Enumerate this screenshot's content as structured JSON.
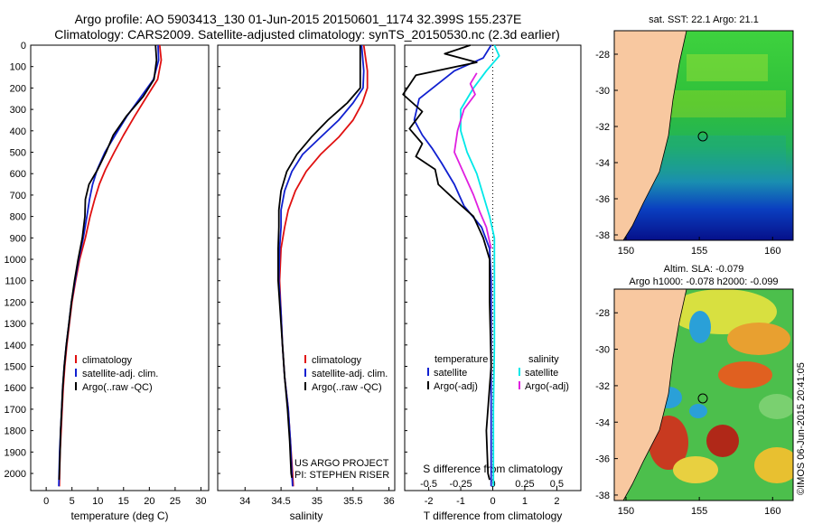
{
  "header": {
    "line1": "Argo profile: AO 5903413_130 01-Jun-2015 20150601_1174 32.399S 155.237E",
    "line2": "Climatology: CARS2009. Satellite-adjusted climatology: synTS_20150530.nc (2.3d earlier)"
  },
  "stamp": "©IMOS 06-Jun-2015 20:41:05",
  "colors": {
    "climatology": "#e01010",
    "satellite": "#1020d0",
    "argo": "#000000",
    "satellite_salinity": "#00e8e8",
    "argo_salinity": "#e020e0",
    "land": "#f8c8a0"
  },
  "chart_data": [
    {
      "type": "line",
      "xlabel": "temperature (deg C)",
      "xticks": [
        "0",
        "5",
        "10",
        "15",
        "20",
        "25",
        "30"
      ],
      "xlim": [
        -3,
        31.5
      ],
      "ylim": [
        0,
        2080
      ],
      "ylabel_ticks": [
        "0",
        "100",
        "200",
        "300",
        "400",
        "500",
        "600",
        "700",
        "800",
        "900",
        "1000",
        "1100",
        "1200",
        "1300",
        "1400",
        "1500",
        "1600",
        "1700",
        "1800",
        "1900",
        "2000"
      ],
      "legend": [
        "climatology",
        "satellite-adj. clim.",
        "Argo(..raw -QC)"
      ],
      "series": [
        {
          "name": "climatology",
          "points": [
            [
              22,
              0
            ],
            [
              22.3,
              70
            ],
            [
              21.6,
              160
            ],
            [
              19.5,
              240
            ],
            [
              17.2,
              330
            ],
            [
              15,
              420
            ],
            [
              13.2,
              500
            ],
            [
              11.5,
              580
            ],
            [
              10.3,
              650
            ],
            [
              9.4,
              720
            ],
            [
              8.5,
              800
            ],
            [
              7.6,
              900
            ],
            [
              6.5,
              1000
            ],
            [
              5.7,
              1100
            ],
            [
              5,
              1200
            ],
            [
              4.5,
              1300
            ],
            [
              4,
              1400
            ],
            [
              3.6,
              1500
            ],
            [
              3.3,
              1600
            ],
            [
              3.1,
              1700
            ],
            [
              2.9,
              1800
            ],
            [
              2.7,
              1900
            ],
            [
              2.6,
              2000
            ],
            [
              2.55,
              2060
            ]
          ]
        },
        {
          "name": "satellite-adj. clim.",
          "points": [
            [
              21.7,
              0
            ],
            [
              21.8,
              70
            ],
            [
              20.8,
              160
            ],
            [
              18.4,
              240
            ],
            [
              15.7,
              330
            ],
            [
              13.4,
              420
            ],
            [
              11.4,
              500
            ],
            [
              9.9,
              580
            ],
            [
              9,
              650
            ],
            [
              8.4,
              720
            ],
            [
              7.9,
              800
            ],
            [
              7.2,
              900
            ],
            [
              6.3,
              1000
            ],
            [
              5.6,
              1100
            ],
            [
              4.9,
              1200
            ],
            [
              4.4,
              1300
            ],
            [
              3.9,
              1400
            ],
            [
              3.5,
              1500
            ],
            [
              3.2,
              1600
            ],
            [
              3,
              1700
            ],
            [
              2.8,
              1800
            ],
            [
              2.6,
              1900
            ],
            [
              2.5,
              2000
            ],
            [
              2.45,
              2060
            ]
          ]
        },
        {
          "name": "Argo(..raw -QC)",
          "points": [
            [
              21.2,
              0
            ],
            [
              21.4,
              70
            ],
            [
              20.9,
              160
            ],
            [
              18.8,
              240
            ],
            [
              15.6,
              330
            ],
            [
              13,
              420
            ],
            [
              11.6,
              500
            ],
            [
              10,
              580
            ],
            [
              8.3,
              650
            ],
            [
              7.6,
              720
            ],
            [
              7.5,
              800
            ],
            [
              7,
              900
            ],
            [
              6.2,
              1000
            ],
            [
              5.5,
              1100
            ],
            [
              4.9,
              1200
            ],
            [
              4.4,
              1300
            ],
            [
              3.9,
              1400
            ],
            [
              3.5,
              1500
            ],
            [
              3.2,
              1600
            ],
            [
              3,
              1700
            ],
            [
              2.8,
              1800
            ],
            [
              2.7,
              1900
            ],
            [
              2.55,
              2000
            ],
            [
              2.5,
              2030
            ]
          ]
        }
      ]
    },
    {
      "type": "line",
      "xlabel": "salinity",
      "xticks": [
        "34",
        "34.5",
        "35",
        "35.5",
        "36"
      ],
      "xlim": [
        33.62,
        36.08
      ],
      "ylim": [
        0,
        2080
      ],
      "legend": [
        "climatology",
        "satellite-adj. clim.",
        "Argo(..raw -QC)"
      ],
      "annotation": [
        "US ARGO PROJECT",
        "PI: STEPHEN RISER"
      ],
      "series": [
        {
          "name": "climatology",
          "points": [
            [
              35.65,
              0
            ],
            [
              35.7,
              120
            ],
            [
              35.7,
              200
            ],
            [
              35.63,
              270
            ],
            [
              35.5,
              350
            ],
            [
              35.3,
              430
            ],
            [
              35.05,
              510
            ],
            [
              34.85,
              590
            ],
            [
              34.7,
              680
            ],
            [
              34.6,
              770
            ],
            [
              34.55,
              850
            ],
            [
              34.5,
              950
            ],
            [
              34.48,
              1100
            ],
            [
              34.5,
              1250
            ],
            [
              34.52,
              1400
            ],
            [
              34.55,
              1550
            ],
            [
              34.6,
              1700
            ],
            [
              34.63,
              1850
            ],
            [
              34.66,
              2000
            ],
            [
              34.67,
              2060
            ]
          ]
        },
        {
          "name": "satellite-adj. clim.",
          "points": [
            [
              35.62,
              0
            ],
            [
              35.65,
              120
            ],
            [
              35.64,
              200
            ],
            [
              35.5,
              270
            ],
            [
              35.3,
              350
            ],
            [
              35.05,
              430
            ],
            [
              34.8,
              510
            ],
            [
              34.65,
              590
            ],
            [
              34.55,
              680
            ],
            [
              34.5,
              770
            ],
            [
              34.5,
              850
            ],
            [
              34.48,
              950
            ],
            [
              34.47,
              1100
            ],
            [
              34.5,
              1250
            ],
            [
              34.52,
              1400
            ],
            [
              34.55,
              1550
            ],
            [
              34.6,
              1700
            ],
            [
              34.63,
              1850
            ],
            [
              34.65,
              2000
            ],
            [
              34.66,
              2060
            ]
          ]
        },
        {
          "name": "Argo(..raw -QC)",
          "points": [
            [
              35.6,
              0
            ],
            [
              35.6,
              120
            ],
            [
              35.6,
              200
            ],
            [
              35.42,
              270
            ],
            [
              35.15,
              350
            ],
            [
              34.92,
              430
            ],
            [
              34.72,
              510
            ],
            [
              34.58,
              590
            ],
            [
              34.5,
              680
            ],
            [
              34.47,
              770
            ],
            [
              34.47,
              850
            ],
            [
              34.46,
              950
            ],
            [
              34.46,
              1100
            ],
            [
              34.49,
              1250
            ],
            [
              34.52,
              1400
            ],
            [
              34.55,
              1550
            ],
            [
              34.59,
              1700
            ],
            [
              34.62,
              1850
            ],
            [
              34.64,
              2000
            ],
            [
              34.65,
              2020
            ]
          ]
        }
      ]
    },
    {
      "type": "line",
      "xlabel": "T difference from climatology",
      "xticks": [
        "-2",
        "-1",
        "0",
        "1",
        "2"
      ],
      "xlim": [
        -2.75,
        2.75
      ],
      "top_label": "S difference from climatology",
      "top_ticks": [
        "-0.5",
        "-0.25",
        "0",
        "0.25",
        "0.5"
      ],
      "top_tick_values_T": [
        -2,
        -1,
        0,
        1,
        2
      ],
      "ylim": [
        0,
        2080
      ],
      "legend_left_title": "temperature",
      "legend_right_title": "salinity",
      "legend": [
        "satellite",
        "Argo(-adj)",
        "satellite",
        "Argo(-adj)"
      ],
      "series": [
        {
          "name": "satellite",
          "group": "temperature",
          "points": [
            [
              -0.05,
              0
            ],
            [
              -0.3,
              60
            ],
            [
              -1.2,
              120
            ],
            [
              -2.3,
              250
            ],
            [
              -2.45,
              350
            ],
            [
              -2.2,
              420
            ],
            [
              -1.9,
              480
            ],
            [
              -1.6,
              550
            ],
            [
              -1.2,
              650
            ],
            [
              -0.9,
              750
            ],
            [
              -0.35,
              850
            ],
            [
              -0.1,
              950
            ],
            [
              -0.05,
              1100
            ],
            [
              -0.05,
              1300
            ],
            [
              -0.05,
              1600
            ],
            [
              -0.05,
              2000
            ],
            [
              -0.05,
              2060
            ]
          ]
        },
        {
          "name": "Argo(-adj)",
          "group": "temperature",
          "points": [
            [
              -0.7,
              0
            ],
            [
              -1.5,
              40
            ],
            [
              -0.5,
              80
            ],
            [
              -2.4,
              140
            ],
            [
              -2.8,
              230
            ],
            [
              -2.2,
              310
            ],
            [
              -2.6,
              390
            ],
            [
              -2.2,
              460
            ],
            [
              -2.4,
              520
            ],
            [
              -1.8,
              580
            ],
            [
              -1.7,
              650
            ],
            [
              -1.2,
              720
            ],
            [
              -0.6,
              800
            ],
            [
              -0.3,
              900
            ],
            [
              -0.1,
              1000
            ],
            [
              -0.1,
              1200
            ],
            [
              -0.05,
              1500
            ],
            [
              -0.2,
              1800
            ],
            [
              -0.15,
              2000
            ],
            [
              -0.1,
              2030
            ]
          ]
        },
        {
          "name": "satellite",
          "group": "salinity",
          "points": [
            [
              0.05,
              0
            ],
            [
              0.2,
              50
            ],
            [
              -0.2,
              120
            ],
            [
              -0.6,
              200
            ],
            [
              -1.0,
              300
            ],
            [
              -1.0,
              400
            ],
            [
              -0.8,
              500
            ],
            [
              -0.5,
              600
            ],
            [
              -0.3,
              700
            ],
            [
              -0.1,
              800
            ],
            [
              0.05,
              900
            ],
            [
              0.05,
              1100
            ],
            [
              0.05,
              1400
            ],
            [
              0.02,
              1700
            ],
            [
              0.02,
              2060
            ]
          ]
        },
        {
          "name": "Argo(-adj)",
          "group": "salinity",
          "points": [
            [
              -0.5,
              130
            ],
            [
              -0.7,
              180
            ],
            [
              -0.55,
              230
            ],
            [
              -0.9,
              300
            ],
            [
              -1.1,
              400
            ],
            [
              -1.2,
              500
            ],
            [
              -0.9,
              600
            ],
            [
              -0.6,
              700
            ],
            [
              -0.4,
              780
            ],
            [
              -0.2,
              850
            ],
            [
              -0.05,
              950
            ]
          ]
        }
      ]
    },
    {
      "type": "heatmap",
      "title": "sat. SST: 22.1  Argo: 21.1",
      "xticks": [
        "150",
        "155",
        "160"
      ],
      "yticks": [
        "-28",
        "-30",
        "-32",
        "-34",
        "-36",
        "-38"
      ],
      "xlim": [
        149.2,
        161.4
      ],
      "ylim": [
        -38.3,
        -26.7
      ]
    },
    {
      "type": "heatmap",
      "title": "Altim. SLA: -0.079",
      "subtitle": "Argo h1000: -0.078 h2000: -0.099",
      "xticks": [
        "150",
        "155",
        "160"
      ],
      "yticks": [
        "-28",
        "-30",
        "-32",
        "-34",
        "-36",
        "-38"
      ],
      "xlim": [
        149.2,
        161.4
      ],
      "ylim": [
        -38.3,
        -26.7
      ]
    }
  ]
}
